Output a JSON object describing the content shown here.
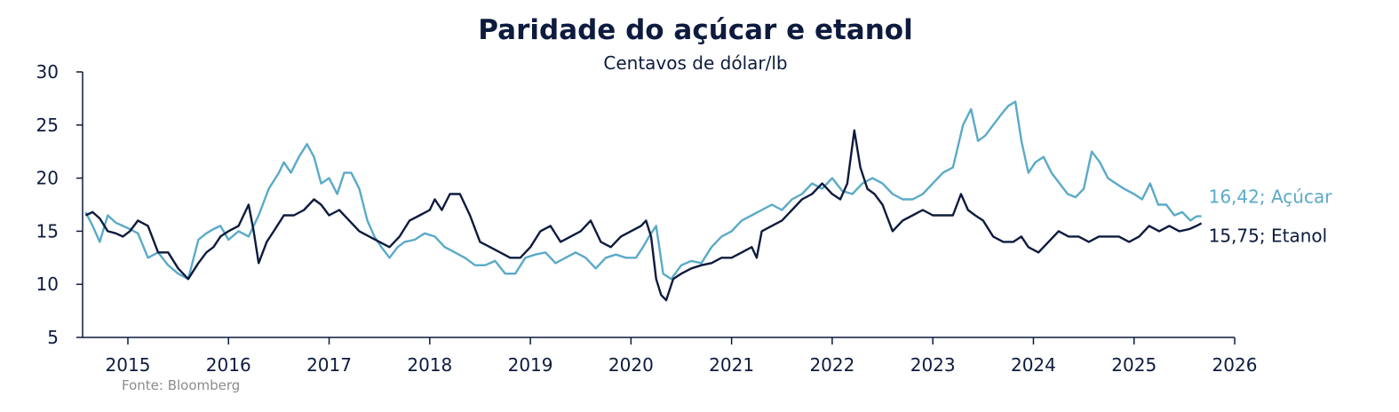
{
  "chart_data": {
    "type": "line",
    "title": "Paridade do açúcar e etanol",
    "subtitle": "Centavos de dólar/lb",
    "source": "Fonte: Bloomberg",
    "xlabel": "",
    "ylabel": "",
    "ylim": [
      5,
      30
    ],
    "yticks": [
      "5",
      "10",
      "15",
      "20",
      "25",
      "30"
    ],
    "xlim": [
      2014.55,
      2026
    ],
    "xticks": [
      "2015",
      "2016",
      "2017",
      "2018",
      "2019",
      "2020",
      "2021",
      "2022",
      "2023",
      "2024",
      "2025",
      "2026"
    ],
    "grid": false,
    "legend": "end-labels",
    "series": [
      {
        "name": "Açúcar",
        "end_label": "16,42; Açúcar",
        "color": "#5aaac8",
        "x": [
          2014.58,
          2014.65,
          2014.72,
          2014.8,
          2014.88,
          2014.95,
          2015.02,
          2015.1,
          2015.2,
          2015.3,
          2015.4,
          2015.5,
          2015.6,
          2015.7,
          2015.78,
          2015.85,
          2015.92,
          2016.0,
          2016.1,
          2016.2,
          2016.3,
          2016.4,
          2016.5,
          2016.55,
          2016.62,
          2016.7,
          2016.78,
          2016.85,
          2016.92,
          2017.0,
          2017.08,
          2017.15,
          2017.22,
          2017.3,
          2017.38,
          2017.45,
          2017.52,
          2017.6,
          2017.68,
          2017.75,
          2017.85,
          2017.95,
          2018.05,
          2018.15,
          2018.25,
          2018.35,
          2018.45,
          2018.55,
          2018.65,
          2018.75,
          2018.85,
          2018.95,
          2019.05,
          2019.15,
          2019.25,
          2019.35,
          2019.45,
          2019.55,
          2019.65,
          2019.75,
          2019.85,
          2019.95,
          2020.05,
          2020.12,
          2020.18,
          2020.25,
          2020.32,
          2020.4,
          2020.5,
          2020.6,
          2020.7,
          2020.8,
          2020.9,
          2021.0,
          2021.1,
          2021.2,
          2021.3,
          2021.4,
          2021.5,
          2021.6,
          2021.7,
          2021.8,
          2021.9,
          2022.0,
          2022.1,
          2022.2,
          2022.3,
          2022.4,
          2022.5,
          2022.6,
          2022.7,
          2022.8,
          2022.9,
          2023.0,
          2023.1,
          2023.2,
          2023.3,
          2023.38,
          2023.45,
          2023.52,
          2023.6,
          2023.68,
          2023.75,
          2023.82,
          2023.88,
          2023.95,
          2024.02,
          2024.1,
          2024.18,
          2024.26,
          2024.34,
          2024.42,
          2024.5,
          2024.58,
          2024.66,
          2024.74,
          2024.82,
          2024.9,
          2025.0,
          2025.08,
          2025.16,
          2025.24,
          2025.32,
          2025.4,
          2025.48,
          2025.56,
          2025.62,
          2025.67
        ],
        "values": [
          16.8,
          15.5,
          14.0,
          16.5,
          15.8,
          15.5,
          15.2,
          14.8,
          12.5,
          13.0,
          11.8,
          11.0,
          10.5,
          14.2,
          14.8,
          15.2,
          15.5,
          14.2,
          15.0,
          14.5,
          16.5,
          19.0,
          20.5,
          21.5,
          20.5,
          22.0,
          23.2,
          22.0,
          19.5,
          20.0,
          18.5,
          20.5,
          20.5,
          19.0,
          16.0,
          14.5,
          13.5,
          12.5,
          13.5,
          14.0,
          14.2,
          14.8,
          14.5,
          13.5,
          13.0,
          12.5,
          11.8,
          11.8,
          12.2,
          11.0,
          11.0,
          12.5,
          12.8,
          13.0,
          12.0,
          12.5,
          13.0,
          12.5,
          11.5,
          12.5,
          12.8,
          12.5,
          12.5,
          13.5,
          14.5,
          15.5,
          11.0,
          10.5,
          11.8,
          12.2,
          12.0,
          13.5,
          14.5,
          15.0,
          16.0,
          16.5,
          17.0,
          17.5,
          17.0,
          18.0,
          18.5,
          19.5,
          19.0,
          20.0,
          18.8,
          18.5,
          19.5,
          20.0,
          19.5,
          18.5,
          18.0,
          18.0,
          18.5,
          19.5,
          20.5,
          21.0,
          25.0,
          26.5,
          23.5,
          24.0,
          25.0,
          26.0,
          26.8,
          27.2,
          23.5,
          20.5,
          21.5,
          22.0,
          20.5,
          19.5,
          18.5,
          18.2,
          19.0,
          22.5,
          21.5,
          20.0,
          19.5,
          19.0,
          18.5,
          18.0,
          19.5,
          17.5,
          17.5,
          16.5,
          16.8,
          16.0,
          16.4,
          16.42
        ]
      },
      {
        "name": "Etanol",
        "end_label": "15,75; Etanol",
        "color": "#0d1b3e",
        "x": [
          2014.58,
          2014.65,
          2014.72,
          2014.8,
          2014.88,
          2014.95,
          2015.02,
          2015.1,
          2015.2,
          2015.3,
          2015.4,
          2015.5,
          2015.6,
          2015.7,
          2015.78,
          2015.85,
          2015.92,
          2016.0,
          2016.1,
          2016.2,
          2016.25,
          2016.3,
          2016.38,
          2016.45,
          2016.55,
          2016.65,
          2016.75,
          2016.85,
          2016.92,
          2017.0,
          2017.1,
          2017.2,
          2017.3,
          2017.4,
          2017.5,
          2017.6,
          2017.7,
          2017.8,
          2017.9,
          2018.0,
          2018.05,
          2018.12,
          2018.2,
          2018.3,
          2018.4,
          2018.5,
          2018.6,
          2018.7,
          2018.8,
          2018.9,
          2019.0,
          2019.1,
          2019.2,
          2019.3,
          2019.4,
          2019.5,
          2019.6,
          2019.7,
          2019.8,
          2019.9,
          2020.0,
          2020.1,
          2020.15,
          2020.2,
          2020.25,
          2020.3,
          2020.35,
          2020.42,
          2020.5,
          2020.6,
          2020.7,
          2020.8,
          2020.9,
          2021.0,
          2021.1,
          2021.2,
          2021.25,
          2021.3,
          2021.4,
          2021.5,
          2021.6,
          2021.7,
          2021.8,
          2021.9,
          2022.0,
          2022.08,
          2022.15,
          2022.22,
          2022.28,
          2022.35,
          2022.42,
          2022.5,
          2022.6,
          2022.7,
          2022.8,
          2022.9,
          2023.0,
          2023.1,
          2023.2,
          2023.28,
          2023.35,
          2023.42,
          2023.5,
          2023.6,
          2023.7,
          2023.8,
          2023.88,
          2023.95,
          2024.05,
          2024.15,
          2024.25,
          2024.35,
          2024.45,
          2024.55,
          2024.65,
          2024.75,
          2024.85,
          2024.95,
          2025.05,
          2025.15,
          2025.25,
          2025.35,
          2025.45,
          2025.55,
          2025.62,
          2025.67
        ],
        "values": [
          16.5,
          16.8,
          16.2,
          15.0,
          14.8,
          14.5,
          15.0,
          16.0,
          15.5,
          13.0,
          13.0,
          11.5,
          10.5,
          12.0,
          13.0,
          13.5,
          14.5,
          15.0,
          15.5,
          17.5,
          15.0,
          12.0,
          14.0,
          15.0,
          16.5,
          16.5,
          17.0,
          18.0,
          17.5,
          16.5,
          17.0,
          16.0,
          15.0,
          14.5,
          14.0,
          13.5,
          14.5,
          16.0,
          16.5,
          17.0,
          18.0,
          17.0,
          18.5,
          18.5,
          16.5,
          14.0,
          13.5,
          13.0,
          12.5,
          12.5,
          13.5,
          15.0,
          15.5,
          14.0,
          14.5,
          15.0,
          16.0,
          14.0,
          13.5,
          14.5,
          15.0,
          15.5,
          16.0,
          14.5,
          10.5,
          9.0,
          8.5,
          10.5,
          11.0,
          11.5,
          11.8,
          12.0,
          12.5,
          12.5,
          13.0,
          13.5,
          12.5,
          15.0,
          15.5,
          16.0,
          17.0,
          18.0,
          18.5,
          19.5,
          18.5,
          18.0,
          19.5,
          24.5,
          21.0,
          19.0,
          18.5,
          17.5,
          15.0,
          16.0,
          16.5,
          17.0,
          16.5,
          16.5,
          16.5,
          18.5,
          17.0,
          16.5,
          16.0,
          14.5,
          14.0,
          14.0,
          14.5,
          13.5,
          13.0,
          14.0,
          15.0,
          14.5,
          14.5,
          14.0,
          14.5,
          14.5,
          14.5,
          14.0,
          14.5,
          15.5,
          15.0,
          15.5,
          15.0,
          15.2,
          15.5,
          15.75
        ]
      }
    ]
  }
}
